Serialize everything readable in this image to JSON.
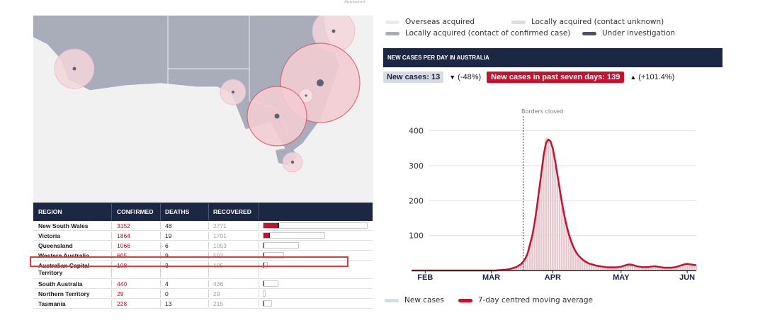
{
  "advertisement": "Advertisement",
  "table": {
    "headers": [
      "REGION",
      "CONFIRMED",
      "DEATHS",
      "RECOVERED"
    ],
    "rows": [
      {
        "region": "New South Wales",
        "confirmed": 3152,
        "deaths": 48,
        "recovered": 2771
      },
      {
        "region": "Victoria",
        "confirmed": 1864,
        "deaths": 19,
        "recovered": 1701
      },
      {
        "region": "Queensland",
        "confirmed": 1066,
        "deaths": 6,
        "recovered": 1053
      },
      {
        "region": "Western Australia",
        "confirmed": 605,
        "deaths": 9,
        "recovered": 593
      },
      {
        "region": "Australian Capital Territory",
        "confirmed": 108,
        "deaths": 3,
        "recovered": 105
      },
      {
        "region": "South Australia",
        "confirmed": 440,
        "deaths": 4,
        "recovered": 436
      },
      {
        "region": "Northern Territory",
        "confirmed": 29,
        "deaths": 0,
        "recovered": 29
      },
      {
        "region": "Tasmania",
        "confirmed": 228,
        "deaths": 13,
        "recovered": 215
      }
    ],
    "highlighted_row": "Western Australia"
  },
  "legend_top": [
    {
      "label": "Overseas acquired",
      "color": "#e9ebef"
    },
    {
      "label": "Locally acquired (contact unknown)",
      "color": "#d8dce4"
    },
    {
      "label": "Locally acquired (contact of confirmed case)",
      "color": "#a7adb8"
    },
    {
      "label": "Under investigation",
      "color": "#4b5366"
    }
  ],
  "panel_title": "NEW CASES PER DAY IN AUSTRALIA",
  "stats": {
    "new_cases_label": "New cases: 13",
    "new_cases_change": "(-48%)",
    "seven_day_label": "New cases in past seven days: 139",
    "seven_day_change": "(+101.4%)"
  },
  "colors": {
    "navy": "#1c2744",
    "red": "#c8102e",
    "bars": "#e6c7cd"
  },
  "chart_data": {
    "type": "bar",
    "annotation": "Borders closed",
    "x_ticks": [
      "FEB",
      "MAR",
      "APR",
      "MAY",
      "JUN"
    ],
    "ylim": [
      0,
      450
    ],
    "y_ticks": [
      100,
      200,
      300,
      400
    ],
    "series": [
      {
        "name": "New cases",
        "values": [
          0,
          0,
          0,
          0,
          0,
          0,
          0,
          0,
          0,
          0,
          0,
          0,
          0,
          0,
          0,
          0,
          0,
          0,
          0,
          0,
          0,
          0,
          0,
          0,
          0,
          0,
          0,
          0,
          0,
          0,
          0,
          0,
          0,
          0,
          0,
          0,
          0,
          0,
          1,
          1,
          2,
          2,
          3,
          4,
          6,
          8,
          10,
          14,
          18,
          25,
          35,
          50,
          75,
          95,
          120,
          160,
          210,
          260,
          330,
          380,
          370,
          360,
          340,
          300,
          250,
          230,
          200,
          170,
          140,
          110,
          90,
          70,
          55,
          40,
          35,
          30,
          25,
          20,
          18,
          16,
          14,
          12,
          12,
          10,
          10,
          9,
          9,
          8,
          8,
          8,
          7,
          7,
          8,
          10,
          14,
          18,
          22,
          20,
          16,
          14,
          12,
          10,
          10,
          9,
          8,
          10,
          14,
          16,
          12,
          10,
          8,
          8,
          7,
          6,
          6,
          8,
          10,
          12,
          14,
          18,
          20,
          22,
          18,
          16,
          14,
          12
        ]
      },
      {
        "name": "7-day centred moving average",
        "values": [
          0,
          0,
          0,
          0,
          0,
          0,
          0,
          0,
          0,
          0,
          0,
          0,
          0,
          0,
          0,
          0,
          0,
          0,
          0,
          0,
          0,
          0,
          0,
          0,
          0,
          0,
          0,
          0,
          0,
          0,
          0,
          0,
          0,
          0,
          0,
          0,
          0,
          0,
          1,
          1,
          2,
          2,
          3,
          4,
          6,
          8,
          10,
          14,
          18,
          25,
          35,
          50,
          75,
          100,
          135,
          180,
          230,
          280,
          330,
          365,
          375,
          370,
          350,
          315,
          275,
          235,
          195,
          160,
          130,
          105,
          85,
          68,
          55,
          45,
          38,
          32,
          27,
          23,
          20,
          18,
          16,
          14,
          13,
          12,
          11,
          10,
          9,
          9,
          9,
          9,
          9,
          10,
          11,
          13,
          15,
          17,
          17,
          16,
          14,
          12,
          11,
          10,
          10,
          10,
          10,
          11,
          12,
          12,
          11,
          10,
          9,
          8,
          8,
          8,
          8,
          9,
          10,
          12,
          14,
          16,
          18,
          19,
          18,
          17,
          16,
          15
        ]
      }
    ],
    "x_ticks_index": [
      6,
      35,
      62,
      92,
      121
    ],
    "borders_closed_index": 49
  },
  "legend_bottom": [
    {
      "label": "New cases",
      "color": "#d7dbe2"
    },
    {
      "label": "7-day centred moving average",
      "color": "#c8102e"
    }
  ]
}
